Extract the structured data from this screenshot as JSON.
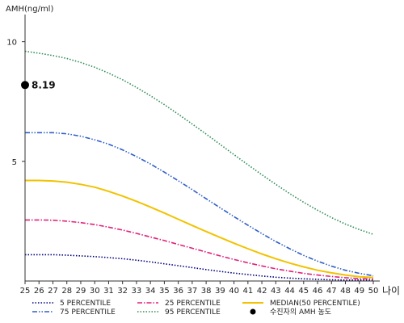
{
  "chart_data": {
    "type": "line",
    "title": "",
    "ylabel": "AMH(ng/ml)",
    "xlabel": "나이",
    "x": [
      25,
      26,
      27,
      28,
      29,
      30,
      31,
      32,
      33,
      34,
      35,
      36,
      37,
      38,
      39,
      40,
      41,
      42,
      43,
      44,
      45,
      46,
      47,
      48,
      49,
      50
    ],
    "xlim": [
      25,
      50
    ],
    "ylim": [
      0,
      11
    ],
    "yticks": [
      5,
      10
    ],
    "grid": false,
    "legend_position": "bottom",
    "series": [
      {
        "name": "5 PERCENTILE",
        "style": "dotted",
        "color": "#000080",
        "values": [
          1.1,
          1.1,
          1.1,
          1.08,
          1.05,
          1.02,
          0.98,
          0.93,
          0.87,
          0.8,
          0.72,
          0.64,
          0.56,
          0.48,
          0.4,
          0.33,
          0.27,
          0.21,
          0.16,
          0.12,
          0.09,
          0.07,
          0.05,
          0.04,
          0.04,
          0.03
        ]
      },
      {
        "name": "25 PERCENTILE",
        "style": "dash-dot",
        "color": "#e0207a",
        "values": [
          2.55,
          2.55,
          2.54,
          2.5,
          2.44,
          2.36,
          2.25,
          2.13,
          1.99,
          1.84,
          1.69,
          1.53,
          1.37,
          1.21,
          1.05,
          0.9,
          0.76,
          0.63,
          0.51,
          0.41,
          0.32,
          0.25,
          0.19,
          0.14,
          0.1,
          0.08
        ]
      },
      {
        "name": "MEDIAN(50 PERCENTILE)",
        "style": "solid",
        "color": "#f2c200",
        "values": [
          4.2,
          4.2,
          4.18,
          4.13,
          4.04,
          3.92,
          3.75,
          3.55,
          3.33,
          3.09,
          2.84,
          2.58,
          2.32,
          2.07,
          1.82,
          1.58,
          1.35,
          1.13,
          0.93,
          0.75,
          0.59,
          0.45,
          0.34,
          0.25,
          0.18,
          0.15
        ]
      },
      {
        "name": "75 PERCENTILE",
        "style": "dash-dot-dot",
        "color": "#2f5fc8",
        "values": [
          6.2,
          6.2,
          6.2,
          6.15,
          6.05,
          5.9,
          5.72,
          5.48,
          5.2,
          4.89,
          4.55,
          4.19,
          3.82,
          3.44,
          3.06,
          2.69,
          2.33,
          1.98,
          1.65,
          1.35,
          1.07,
          0.83,
          0.62,
          0.45,
          0.32,
          0.22
        ]
      },
      {
        "name": "95 PERCENTILE",
        "style": "dotted",
        "color": "#2e8b57",
        "values": [
          9.6,
          9.52,
          9.42,
          9.3,
          9.13,
          8.93,
          8.69,
          8.41,
          8.09,
          7.74,
          7.37,
          6.97,
          6.56,
          6.14,
          5.71,
          5.28,
          4.86,
          4.44,
          4.04,
          3.65,
          3.29,
          2.96,
          2.65,
          2.38,
          2.15,
          1.95
        ]
      }
    ],
    "marker": {
      "name": "수진자의 AMH 농도",
      "x": 25,
      "y": 8.19,
      "label": "8.19",
      "color": "#000000"
    }
  }
}
